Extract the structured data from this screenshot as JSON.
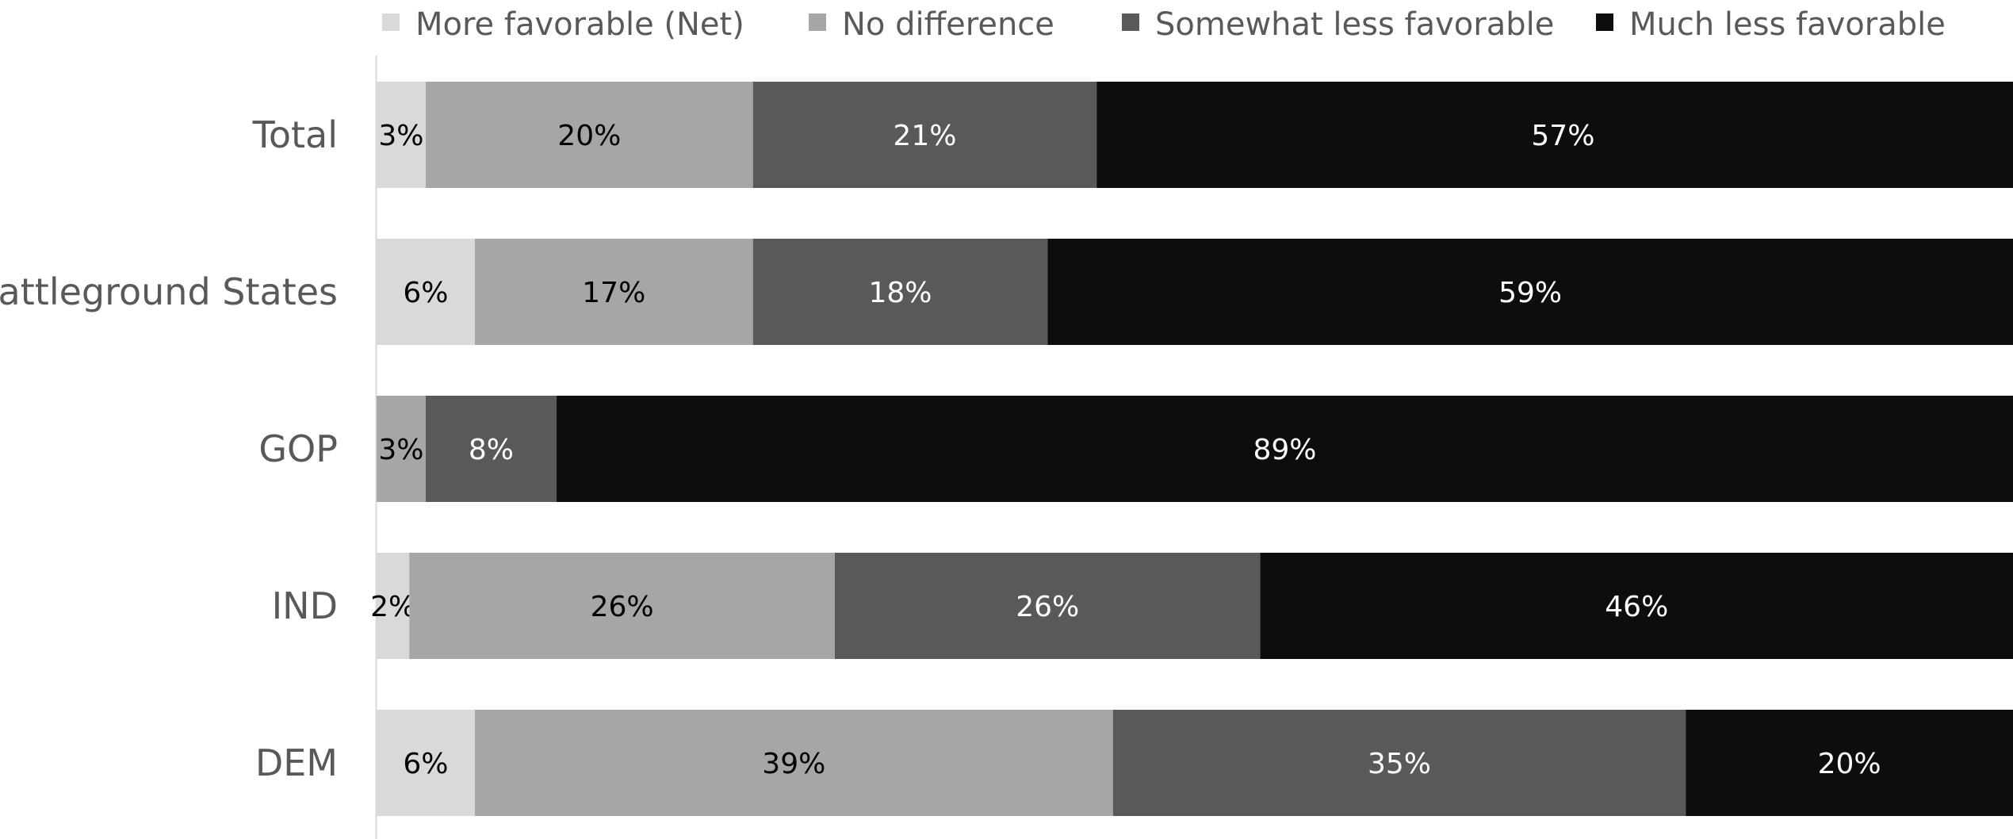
{
  "chart_data": {
    "type": "bar",
    "orientation": "horizontal",
    "stacked": true,
    "title": "",
    "xlabel": "",
    "ylabel": "",
    "xlim": [
      0,
      100
    ],
    "grid": false,
    "legend_position": "top",
    "categories": [
      "Total",
      "Battleground States",
      "GOP",
      "IND",
      "DEM"
    ],
    "series": [
      {
        "name": "More favorable (Net)",
        "color": "#d9d9d9",
        "label_color": "#000000",
        "values": [
          3,
          6,
          0,
          2,
          6
        ]
      },
      {
        "name": "No difference",
        "color": "#a6a6a6",
        "label_color": "#000000",
        "values": [
          20,
          17,
          3,
          26,
          39
        ]
      },
      {
        "name": "Somewhat less favorable",
        "color": "#595959",
        "label_color": "#ffffff",
        "values": [
          21,
          18,
          8,
          26,
          35
        ]
      },
      {
        "name": "Much less favorable",
        "color": "#0d0d0d",
        "label_color": "#ffffff",
        "values": [
          57,
          59,
          89,
          46,
          20
        ]
      }
    ],
    "data_labels": [
      [
        "3%",
        "20%",
        "21%",
        "57%"
      ],
      [
        "6%",
        "17%",
        "18%",
        "59%"
      ],
      [
        "",
        "3%",
        "8%",
        "89%"
      ],
      [
        "2%",
        "26%",
        "26%",
        "46%"
      ],
      [
        "6%",
        "39%",
        "35%",
        "20%"
      ]
    ]
  }
}
